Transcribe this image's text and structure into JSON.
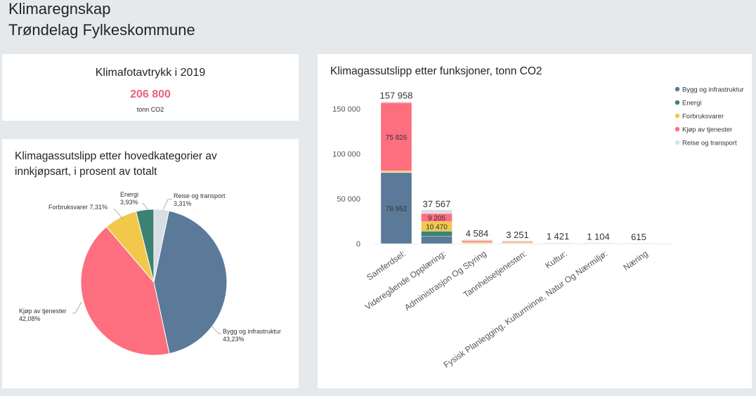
{
  "header": {
    "title": "Klimaregnskap",
    "subtitle": "Trøndelag Fylkeskommune"
  },
  "kpi": {
    "title": "Klimafotavtrykk i 2019",
    "value": "206 800",
    "unit": "tonn CO2",
    "value_color": "#e8657a"
  },
  "chart_data": [
    {
      "type": "pie",
      "title": "Klimagassutslipp etter hovedkategorier av innkjøpsart, i prosent av totalt",
      "slices": [
        {
          "name": "Bygg og infrastruktur",
          "value": 43.23,
          "label": "43,23%",
          "color": "#5b7a99"
        },
        {
          "name": "Kjøp av tjenester",
          "value": 42.08,
          "label": "42,08%",
          "color": "#fd6e7f"
        },
        {
          "name": "Forbruksvarer",
          "value": 7.31,
          "label": "7,31%",
          "color": "#f2c84b"
        },
        {
          "name": "Energi",
          "value": 3.93,
          "label": "3,93%",
          "color": "#3c8273"
        },
        {
          "name": "Reise og transport",
          "value": 3.31,
          "label": "3,31%",
          "color": "#d9dde4"
        }
      ]
    },
    {
      "type": "bar",
      "stacked": true,
      "title": "Klimagassutslipp etter funksjoner, tonn CO2",
      "legend_position": "top-right",
      "ylim": [
        0,
        160000
      ],
      "yticks": [
        {
          "value": 0,
          "label": "0"
        },
        {
          "value": 50000,
          "label": "50 000"
        },
        {
          "value": 100000,
          "label": "100 000"
        },
        {
          "value": 150000,
          "label": "150 000"
        }
      ],
      "categories": [
        "Samferdsel:",
        "Videregående Opplæring:",
        "Administrasjon Og Styring",
        "Tannhelsetjenesten:",
        "Kultur:",
        "Fysisk Planlegging, Kulturminne, Natur Og Nærmiljø:",
        "Næring"
      ],
      "totals": [
        157958,
        37567,
        4584,
        3251,
        1421,
        1104,
        615
      ],
      "total_labels": [
        "157 958",
        "37 567",
        "4 584",
        "3 251",
        "1 421",
        "1 104",
        "615"
      ],
      "series": [
        {
          "name": "Bygg og infrastruktur",
          "color": "#5b7a99",
          "values": [
            78952,
            8400,
            300,
            250,
            150,
            100,
            80
          ],
          "labels": [
            "78 952",
            "",
            "",
            "",
            "",
            "",
            ""
          ]
        },
        {
          "name": "Energi",
          "color": "#3c8273",
          "values": [
            300,
            5500,
            100,
            80,
            40,
            30,
            20
          ],
          "labels": [
            "",
            "",
            "",
            "",
            "",
            "",
            ""
          ]
        },
        {
          "name": "Forbruksvarer",
          "color": "#f2c84b",
          "values": [
            1600,
            10470,
            1500,
            1000,
            300,
            300,
            150
          ],
          "labels": [
            "",
            "10 470",
            "",
            "",
            "",
            "",
            ""
          ]
        },
        {
          "name": "Kjøp av tjenester",
          "color": "#fd6e7f",
          "values": [
            75826,
            9205,
            1500,
            1000,
            500,
            374,
            200
          ],
          "labels": [
            "75 826",
            "9 205",
            "",
            "",
            "",
            "",
            ""
          ]
        },
        {
          "name": "Reise og transport",
          "color": "#d9dde4",
          "values": [
            1280,
            3992,
            1184,
            921,
            431,
            300,
            165
          ],
          "labels": [
            "",
            "",
            "",
            "",
            "",
            "",
            ""
          ]
        }
      ]
    }
  ]
}
